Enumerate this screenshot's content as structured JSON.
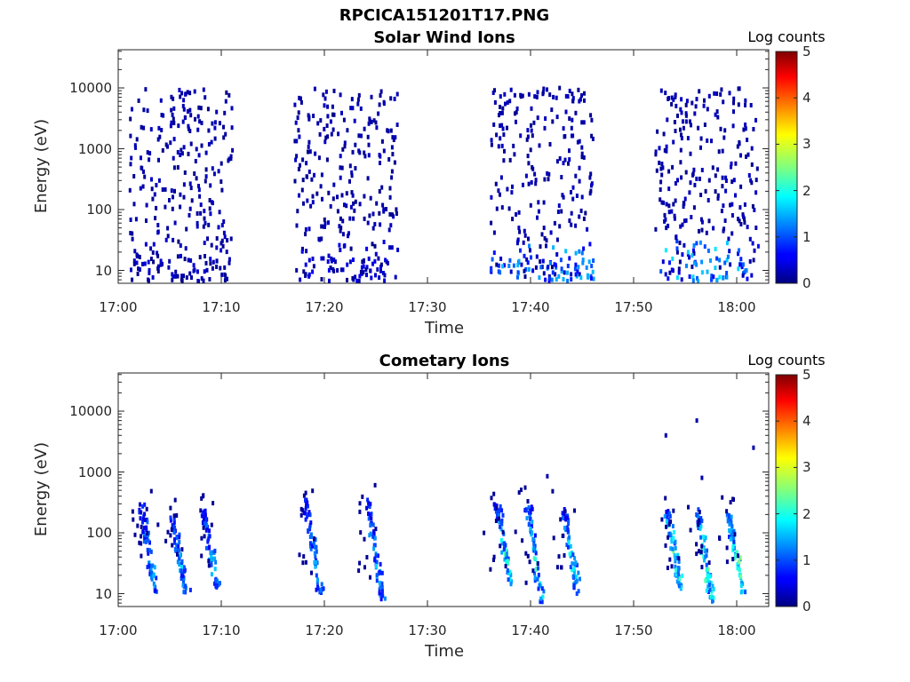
{
  "figure_title": "RPCICA151201T17.PNG",
  "chart_data": [
    {
      "type": "heatmap",
      "title": "Solar Wind Ions",
      "xlabel": "Time",
      "ylabel": "Energy (eV)",
      "x_ticks": [
        "17:00",
        "17:10",
        "17:20",
        "17:30",
        "17:40",
        "17:50",
        "18:00"
      ],
      "y_ticks": [
        "10",
        "100",
        "1000",
        "10000"
      ],
      "y_scale": "log",
      "xlim": [
        "17:00",
        "18:03"
      ],
      "ylim": [
        6,
        40000
      ],
      "colorbar": {
        "label": "Log counts",
        "ticks": [
          "0",
          "1",
          "2",
          "3",
          "4",
          "5"
        ],
        "range": [
          0,
          5
        ]
      },
      "bursts": [
        {
          "start": "17:01",
          "end": "17:11",
          "max_log_counts": 0.4,
          "cells": [
            [
              70,
              50
            ],
            [
              40,
              20,
              0.2
            ],
            [
              130,
              40
            ],
            [
              2300,
              12
            ],
            [
              35000,
              1
            ]
          ]
        },
        {
          "start": "17:17",
          "end": "17:27",
          "max_log_counts": 0.5,
          "cells": [
            [
              70,
              45
            ],
            [
              40,
              20,
              0.3
            ],
            [
              130,
              40
            ],
            [
              2000,
              12
            ],
            [
              20000,
              2
            ]
          ]
        },
        {
          "start": "17:36",
          "end": "17:46",
          "max_log_counts": 1.6,
          "cells": [
            [
              60,
              70
            ],
            [
              40,
              30,
              1.0
            ],
            [
              150,
              30
            ],
            [
              1800,
              14
            ],
            [
              15000,
              3
            ]
          ]
        },
        {
          "start": "17:52",
          "end": "18:02",
          "max_log_counts": 1.8,
          "cells": [
            [
              60,
              70
            ],
            [
              40,
              30,
              1.2
            ],
            [
              150,
              30
            ],
            [
              1800,
              14
            ],
            [
              20000,
              3
            ]
          ]
        }
      ]
    },
    {
      "type": "heatmap",
      "title": "Cometary Ions",
      "xlabel": "Time",
      "ylabel": "Energy (eV)",
      "x_ticks": [
        "17:00",
        "17:10",
        "17:20",
        "17:30",
        "17:40",
        "17:50",
        "18:00"
      ],
      "y_ticks": [
        "10",
        "100",
        "1000",
        "10000"
      ],
      "y_scale": "log",
      "xlim": [
        "17:00",
        "18:03"
      ],
      "ylim": [
        6,
        40000
      ],
      "colorbar": {
        "label": "Log counts",
        "ticks": [
          "0",
          "1",
          "2",
          "3",
          "4",
          "5"
        ],
        "range": [
          0,
          5
        ]
      },
      "bursts": [
        {
          "start": "17:02",
          "end": "17:10",
          "max_log_counts": 1.5,
          "streaks": [
            [
              "17:03.5",
              10,
              300
            ],
            [
              "17:06.5",
              10,
              200
            ],
            [
              "17:09.5",
              12,
              250
            ]
          ]
        },
        {
          "start": "17:17",
          "end": "17:27",
          "max_log_counts": 1.5,
          "streaks": [
            [
              "17:19.5",
              10,
              350
            ],
            [
              "17:25.5",
              8,
              350
            ]
          ]
        },
        {
          "start": "17:36",
          "end": "17:46",
          "max_log_counts": 2.0,
          "streaks": [
            [
              "17:38",
              12,
              300
            ],
            [
              "17:41",
              7,
              300
            ],
            [
              "17:44.5",
              10,
              250
            ]
          ]
        },
        {
          "start": "17:52",
          "end": "18:02",
          "max_log_counts": 2.3,
          "streaks": [
            [
              "17:54.5",
              12,
              250
            ],
            [
              "17:57.5",
              7,
              250
            ],
            [
              "18:00.5",
              10,
              200
            ]
          ]
        }
      ],
      "sparse_points": [
        [
          "17:53",
          4000
        ],
        [
          "17:56",
          7000
        ],
        [
          "18:01.5",
          2500
        ],
        [
          "17:41.5",
          850
        ],
        [
          "17:56.5",
          800
        ]
      ]
    }
  ]
}
